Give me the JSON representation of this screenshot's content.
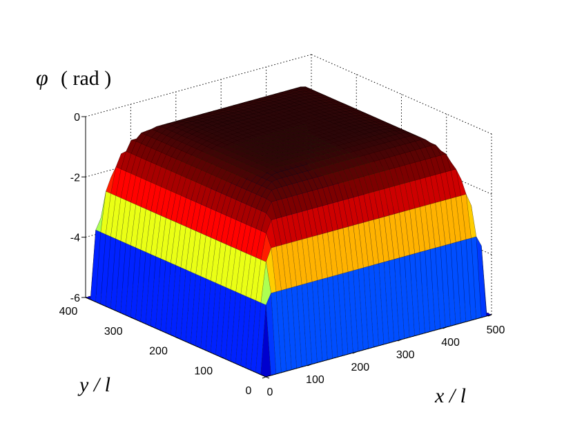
{
  "chart_data": {
    "type": "surface",
    "z_label_symbol": "φ",
    "z_label_unit": "( rad )",
    "x_label": "x / l",
    "y_label": "y / l",
    "x_ticks": [
      0,
      100,
      200,
      300,
      400,
      500
    ],
    "y_ticks": [
      0,
      100,
      200,
      300,
      400
    ],
    "z_ticks": [
      0,
      -2,
      -4,
      -6
    ],
    "xlim": [
      0,
      500
    ],
    "ylim": [
      0,
      400
    ],
    "zlim": [
      -6,
      0
    ],
    "grid": true,
    "surface": {
      "plateau_value": 0,
      "edge_min_value": -6,
      "description_values": {
        "center": 0,
        "corner_min": -6
      }
    },
    "colormap": [
      "#00008f",
      "#0000ff",
      "#00ffff",
      "#ffff00",
      "#ff0000",
      "#800000",
      "#2a0608"
    ]
  }
}
